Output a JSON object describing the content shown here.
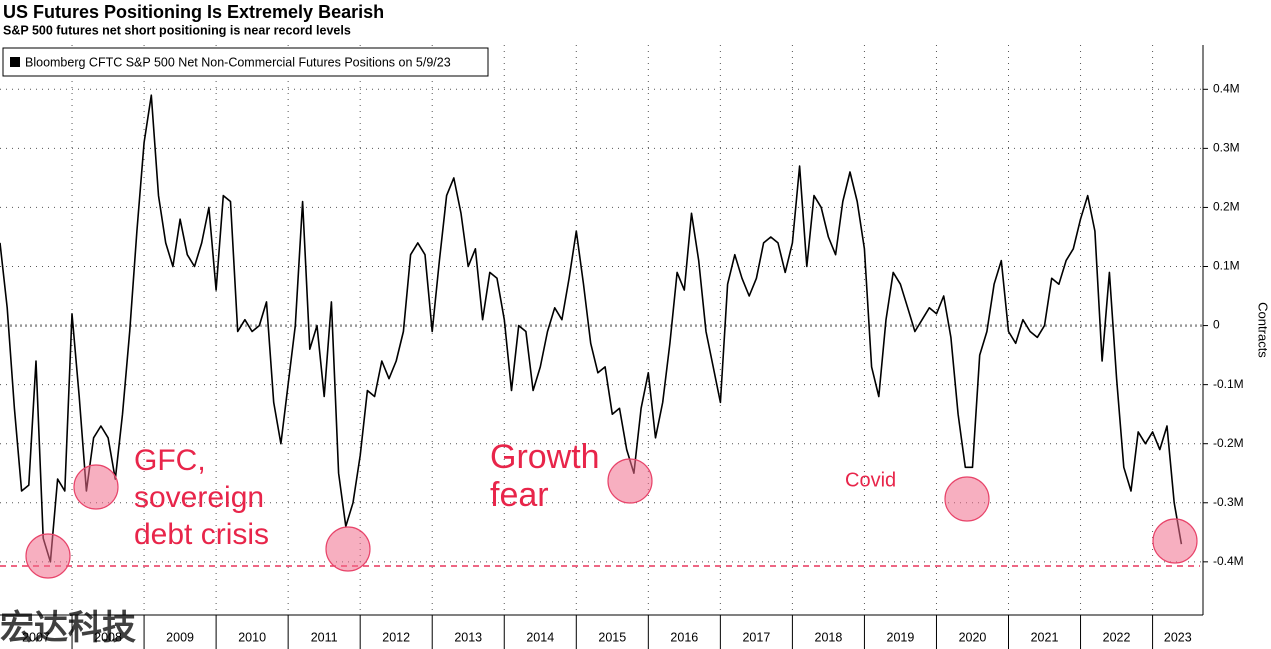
{
  "chart_data": {
    "type": "line",
    "title": "US Futures Positioning Is Extremely Bearish",
    "subtitle": "S&P 500 futures net short positioning is near record levels",
    "y_label": "Contracts",
    "annotations": [
      [
        "GFC,",
        "sovereign",
        "debt crisis"
      ],
      [
        "Growth",
        "fear"
      ],
      [
        "Covid"
      ]
    ],
    "watermark": "宏达科技",
    "legend": "top-left",
    "grid": true,
    "xlim": [
      2007,
      2023.7
    ],
    "xticks": [
      2007,
      2008,
      2009,
      2010,
      2011,
      2012,
      2013,
      2014,
      2015,
      2016,
      2017,
      2018,
      2019,
      2020,
      2021,
      2022,
      2023
    ],
    "ylim": [
      -0.49,
      0.475
    ],
    "yticks": [
      {
        "value": -0.4,
        "label": "-0.4M"
      },
      {
        "value": -0.3,
        "label": "-0.3M"
      },
      {
        "value": -0.2,
        "label": "-0.2M"
      },
      {
        "value": -0.1,
        "label": "-0.1M"
      },
      0,
      {
        "value": 0.1,
        "label": "0.1M"
      },
      {
        "value": 0.2,
        "label": "0.2M"
      },
      {
        "value": 0.3,
        "label": "0.3M"
      },
      {
        "value": 0.4,
        "label": "0.4M"
      }
    ],
    "x": [
      2007,
      2007.1,
      2007.2,
      2007.3,
      2007.4,
      2007.5,
      2007.6,
      2007.7,
      2007.8,
      2007.9,
      2008,
      2008.1,
      2008.2,
      2008.3,
      2008.4,
      2008.5,
      2008.6,
      2008.7,
      2008.8,
      2008.9,
      2009,
      2009.1,
      2009.2,
      2009.3,
      2009.4,
      2009.5,
      2009.6,
      2009.7,
      2009.8,
      2009.9,
      2010,
      2010.1,
      2010.2,
      2010.3,
      2010.4,
      2010.5,
      2010.6,
      2010.7,
      2010.8,
      2010.9,
      2011,
      2011.1,
      2011.2,
      2011.3,
      2011.4,
      2011.5,
      2011.6,
      2011.7,
      2011.8,
      2011.9,
      2012,
      2012.1,
      2012.2,
      2012.3,
      2012.4,
      2012.5,
      2012.6,
      2012.7,
      2012.8,
      2012.9,
      2013,
      2013.1,
      2013.2,
      2013.3,
      2013.4,
      2013.5,
      2013.6,
      2013.7,
      2013.8,
      2013.9,
      2014,
      2014.1,
      2014.2,
      2014.3,
      2014.4,
      2014.5,
      2014.6,
      2014.7,
      2014.8,
      2014.9,
      2015,
      2015.1,
      2015.2,
      2015.3,
      2015.4,
      2015.5,
      2015.6,
      2015.7,
      2015.8,
      2015.9,
      2016,
      2016.1,
      2016.2,
      2016.3,
      2016.4,
      2016.5,
      2016.6,
      2016.7,
      2016.8,
      2016.9,
      2017,
      2017.1,
      2017.2,
      2017.3,
      2017.4,
      2017.5,
      2017.6,
      2017.7,
      2017.8,
      2017.9,
      2018,
      2018.1,
      2018.2,
      2018.3,
      2018.4,
      2018.5,
      2018.6,
      2018.7,
      2018.8,
      2018.9,
      2019,
      2019.1,
      2019.2,
      2019.3,
      2019.4,
      2019.5,
      2019.6,
      2019.7,
      2019.8,
      2019.9,
      2020,
      2020.1,
      2020.2,
      2020.3,
      2020.4,
      2020.5,
      2020.6,
      2020.7,
      2020.8,
      2020.9,
      2021,
      2021.1,
      2021.2,
      2021.3,
      2021.4,
      2021.5,
      2021.6,
      2021.7,
      2021.8,
      2021.9,
      2022,
      2022.1,
      2022.2,
      2022.3,
      2022.4,
      2022.5,
      2022.6,
      2022.7,
      2022.8,
      2022.9,
      2023,
      2023.1,
      2023.2,
      2023.3,
      2023.4
    ],
    "series": [
      {
        "name": "Bloomberg CFTC S&P 500 Net Non-Commercial Futures Positions on 5/9/23",
        "color": "#000000",
        "values": [
          0.14,
          0.03,
          -0.14,
          -0.28,
          -0.27,
          -0.06,
          -0.36,
          -0.4,
          -0.26,
          -0.28,
          0.02,
          -0.12,
          -0.28,
          -0.19,
          -0.17,
          -0.19,
          -0.26,
          -0.15,
          -0.01,
          0.16,
          0.31,
          0.39,
          0.22,
          0.14,
          0.1,
          0.18,
          0.12,
          0.1,
          0.14,
          0.2,
          0.06,
          0.22,
          0.21,
          -0.01,
          0.01,
          -0.01,
          0,
          0.04,
          -0.13,
          -0.2,
          -0.1,
          0,
          0.21,
          -0.04,
          0,
          -0.12,
          0.04,
          -0.25,
          -0.34,
          -0.3,
          -0.22,
          -0.11,
          -0.12,
          -0.06,
          -0.09,
          -0.06,
          -0.01,
          0.12,
          0.14,
          0.12,
          -0.01,
          0.11,
          0.22,
          0.25,
          0.19,
          0.1,
          0.13,
          0.01,
          0.09,
          0.08,
          0.01,
          -0.11,
          0,
          -0.01,
          -0.11,
          -0.07,
          -0.01,
          0.03,
          0.01,
          0.08,
          0.16,
          0.07,
          -0.03,
          -0.08,
          -0.07,
          -0.15,
          -0.14,
          -0.21,
          -0.25,
          -0.14,
          -0.08,
          -0.19,
          -0.13,
          -0.03,
          0.09,
          0.06,
          0.19,
          0.11,
          -0.01,
          -0.07,
          -0.13,
          0.07,
          0.12,
          0.08,
          0.05,
          0.08,
          0.14,
          0.15,
          0.14,
          0.09,
          0.14,
          0.27,
          0.1,
          0.22,
          0.2,
          0.15,
          0.12,
          0.21,
          0.26,
          0.21,
          0.13,
          -0.07,
          -0.12,
          0.01,
          0.09,
          0.07,
          0.03,
          -0.01,
          0.01,
          0.03,
          0.02,
          0.05,
          -0.02,
          -0.15,
          -0.24,
          -0.24,
          -0.05,
          -0.01,
          0.07,
          0.11,
          -0.01,
          -0.03,
          0.01,
          -0.01,
          -0.02,
          0,
          0.08,
          0.07,
          0.11,
          0.13,
          0.18,
          0.22,
          0.16,
          -0.06,
          0.09,
          -0.09,
          -0.24,
          -0.28,
          -0.18,
          -0.2,
          -0.18,
          -0.21,
          -0.17,
          -0.3,
          -0.37
        ]
      }
    ]
  }
}
